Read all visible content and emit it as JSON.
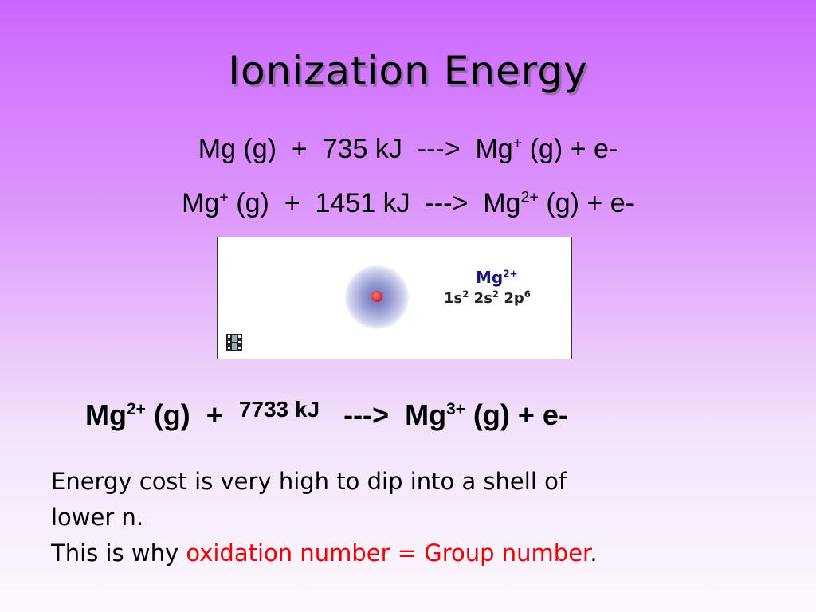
{
  "slide": {
    "title": "Ionization Energy",
    "equation1": {
      "reactant": "Mg (g)",
      "plus": "+",
      "energy": "735 kJ",
      "arrow": "--->",
      "product": "Mg",
      "product_charge": "+",
      "product_rest": "(g) + e-"
    },
    "equation2": {
      "reactant": "Mg",
      "reactant_charge": "+",
      "reactant_rest": "(g)",
      "plus": "+",
      "energy": "1451 kJ",
      "arrow": "--->",
      "product": "Mg",
      "product_charge": "2+",
      "product_rest": "(g) + e-"
    },
    "animation": {
      "ion_symbol": "Mg",
      "ion_charge": "2+",
      "config": [
        {
          "orbital": "1s",
          "electrons": "2"
        },
        {
          "orbital": "2s",
          "electrons": "2"
        },
        {
          "orbital": "2p",
          "electrons": "6"
        }
      ],
      "icon": "film-icon"
    },
    "equation3": {
      "reactant": "Mg",
      "reactant_charge": "2+",
      "reactant_rest": "(g)",
      "plus": "+",
      "energy": "7733 kJ",
      "arrow": "--->",
      "product": "Mg",
      "product_charge": "3+",
      "product_rest": "(g) + e-"
    },
    "text": {
      "line1": "Energy cost is very high to dip into a shell of",
      "line2": "lower n.",
      "line3_prefix": "This is why ",
      "line3_highlight": "oxidation number = Group number",
      "line3_suffix": "."
    },
    "colors": {
      "highlight": "#ee0000",
      "ion_label": "#17177a"
    }
  }
}
